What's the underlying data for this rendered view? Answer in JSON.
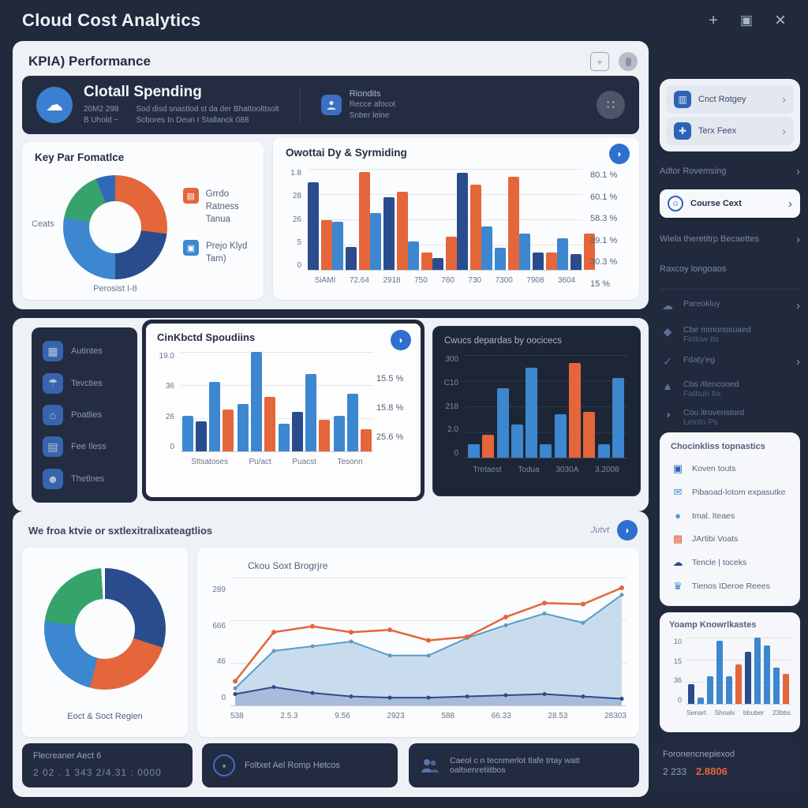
{
  "window": {
    "title": "Cloud Cost Analytics"
  },
  "titlebar": {
    "plus": "+",
    "maximize": "▣",
    "close": "×"
  },
  "icons": {
    "cloud": "☁",
    "dots": "∷",
    "droplet": "◗",
    "chevron": "›",
    "check": "✓",
    "badge_plus": "+",
    "cart": "▦",
    "umbrella": "☂",
    "home": "⌂",
    "case": "▤",
    "users": "☻",
    "shop": "▥",
    "cluster": "✚",
    "gem": "◆",
    "warn": "▲",
    "pie": "◑",
    "grid": "▣",
    "mail": "✉",
    "dot": "●",
    "hatch": "▩",
    "cloud2": "☁",
    "crown": "♛",
    "lock": "▪",
    "wallet": "▬"
  },
  "kpi": {
    "title": "KPIA) Performance"
  },
  "hero": {
    "title": "Clotall Spending",
    "stat1": "20M2 298",
    "stat2": "B Uhold ~",
    "desc1": "Sod disd snastlod st da der Bhattoolttsolt",
    "desc2": "Scbores In Deun I Stallanck 088",
    "col2_title": "Riondits",
    "col2_line1": "Recce afocot",
    "col2_line2": "Snber leine"
  },
  "donut1": {
    "left_label": "Ceats",
    "bottom_label": "Perosist I-8",
    "legend": [
      {
        "line1": "Grrdo Ratness",
        "line2": "Tanua",
        "color": "#e4663a"
      },
      {
        "line1": "Prejo Klyd",
        "line2": "Tam)",
        "color": "#3c87cf"
      }
    ]
  },
  "midlist": {
    "items": [
      "Autintes",
      "Tevcties",
      "Poatlies",
      "Fee Iless",
      "Thetlnes"
    ]
  },
  "section2": {
    "title": "We froa ktvie or sxtlexitralixateagtlios",
    "action": "Jutvt"
  },
  "donut2": {
    "bottom_label": "Eoct & Soct Regien"
  },
  "bottom_cards": [
    {
      "title": "Flecreaner Aect 6",
      "value": "2 02 . 1 343  2/4.31 : 0000"
    },
    {
      "label": "Foltxet Ael Romp Hetcos"
    },
    {
      "label": "Caeol c n tecnmerlot tlafe trtay watt oaltsenretiitbos"
    },
    {
      "title": "Foronencnepiexod",
      "value": "2 233",
      "value2": "2.8806"
    }
  ],
  "sidebar": {
    "buttons": [
      {
        "label": "Cnct Rotgey"
      },
      {
        "label": "Terx Feex"
      }
    ],
    "nav": [
      {
        "label": "Adtor Rovemsing"
      },
      {
        "label": "Course Cext"
      },
      {
        "label": "Wiela theretitrp Becaettes"
      },
      {
        "label": "Raxcoy longoaos"
      }
    ],
    "icon_items": [
      {
        "line1": "Pareokluy",
        "line2": ""
      },
      {
        "line1": "Cbe mmonosuaed",
        "line2": "Firtlow Its"
      },
      {
        "line1": "Fdaty'eg",
        "line2": ""
      },
      {
        "line1": "Cbs /ttencooed",
        "line2": "Fatbuh Ita"
      },
      {
        "line1": "Cou itrovenstord",
        "line2": "Leirito Ps"
      }
    ],
    "checklist": {
      "title": "Chocinkliss topnastics",
      "items": [
        {
          "label": "Koven touts",
          "color": "#2f62b5"
        },
        {
          "label": "Pibaoad-lotom expasutke",
          "color": "#3c87cf"
        },
        {
          "label": "tmal. Iteaes",
          "color": "#4b9be0"
        },
        {
          "label": "JArtibi Voats",
          "color": "#e4663a"
        },
        {
          "label": "Tencle | toceks",
          "color": "#2b4c8c"
        },
        {
          "label": "Tienos IDeroe Reees",
          "color": "#3c87cf"
        }
      ]
    }
  },
  "colors": {
    "blue": "#3c87cf",
    "darkblue": "#2b4c8c",
    "orange": "#e4663a",
    "green": "#36a36d",
    "lightblue": "#5b9cc6",
    "lightblue_fill": "#c9dcee",
    "darkblue_fill": "rgba(43,76,140,0.25)",
    "accent": "#2f6fd0",
    "white": "#ffffff"
  },
  "chart_data": [
    {
      "id": "kpi_donut",
      "type": "pie",
      "title": "Key Par Fomatlce",
      "segments": [
        {
          "label": "orange",
          "value": 27,
          "color": "#e4663a"
        },
        {
          "label": "dark-blue",
          "value": 23,
          "color": "#2b4c8c"
        },
        {
          "label": "blue",
          "value": 28,
          "color": "#3c87cf"
        },
        {
          "label": "green",
          "value": 16,
          "color": "#36a36d"
        },
        {
          "label": "blue-sliver",
          "value": 6,
          "color": "#2f6ab8"
        }
      ]
    },
    {
      "id": "overall",
      "type": "bar",
      "title": "Owottai Dy & Syrmiding",
      "ylabels": [
        "1.8",
        "28",
        "26",
        "5",
        "0"
      ],
      "right_labels": [
        "80.1 %",
        "60.1 %",
        "58.3 %",
        "39.1 %",
        "30.3 %",
        "15 %"
      ],
      "ylim": [
        0,
        2
      ],
      "grid": true,
      "legend_position": "none",
      "groups": [
        {
          "label": "SiAMI",
          "bars": [
            {
              "c": "darkblue",
              "v": 0.87
            },
            {
              "c": "orange",
              "v": 0.49
            }
          ]
        },
        {
          "label": "72.64",
          "bars": [
            {
              "c": "blue",
              "v": 0.48
            },
            {
              "c": "darkblue",
              "v": 0.23
            },
            {
              "c": "orange",
              "v": 0.97
            }
          ]
        },
        {
          "label": "2918",
          "bars": [
            {
              "c": "blue",
              "v": 0.56
            },
            {
              "c": "darkblue",
              "v": 0.72
            },
            {
              "c": "orange",
              "v": 0.77
            }
          ]
        },
        {
          "label": "750",
          "bars": [
            {
              "c": "blue",
              "v": 0.28
            },
            {
              "c": "orange",
              "v": 0.17
            }
          ]
        },
        {
          "label": "760",
          "bars": [
            {
              "c": "darkblue",
              "v": 0.12
            },
            {
              "c": "orange",
              "v": 0.33
            }
          ]
        },
        {
          "label": "730",
          "bars": [
            {
              "c": "darkblue",
              "v": 0.96
            },
            {
              "c": "orange",
              "v": 0.84
            }
          ]
        },
        {
          "label": "7300",
          "bars": [
            {
              "c": "blue",
              "v": 0.43
            },
            {
              "c": "blue",
              "v": 0.22
            },
            {
              "c": "orange",
              "v": 0.92
            }
          ]
        },
        {
          "label": "7908",
          "bars": [
            {
              "c": "blue",
              "v": 0.36
            },
            {
              "c": "darkblue",
              "v": 0.17
            },
            {
              "c": "orange",
              "v": 0.17
            }
          ]
        },
        {
          "label": "3604",
          "bars": [
            {
              "c": "blue",
              "v": 0.31
            },
            {
              "c": "darkblue",
              "v": 0.16
            },
            {
              "c": "orange",
              "v": 0.36
            }
          ]
        }
      ]
    },
    {
      "id": "clicked",
      "type": "bar",
      "title": "CinKbctd Spoudiins",
      "ylabels": [
        "19.0",
        "36",
        "26",
        "0"
      ],
      "right_labels": [
        "15.5 %",
        "15.8 %",
        "25.6 %"
      ],
      "ylim": [
        0,
        19
      ],
      "grid": true,
      "groups": [
        {
          "label": "Sttsatoses",
          "bars": [
            {
              "c": "blue",
              "v": 0.36
            },
            {
              "c": "darkblue",
              "v": 0.3
            },
            {
              "c": "blue",
              "v": 0.7
            },
            {
              "c": "orange",
              "v": 0.42
            }
          ]
        },
        {
          "label": "Pu/act",
          "bars": [
            {
              "c": "blue",
              "v": 0.48
            },
            {
              "c": "blue",
              "v": 1.0
            },
            {
              "c": "orange",
              "v": 0.55
            }
          ]
        },
        {
          "label": "Puacst",
          "bars": [
            {
              "c": "blue",
              "v": 0.28
            },
            {
              "c": "darkblue",
              "v": 0.4
            },
            {
              "c": "blue",
              "v": 0.78
            },
            {
              "c": "orange",
              "v": 0.32
            }
          ]
        },
        {
          "label": "Tesonn",
          "bars": [
            {
              "c": "blue",
              "v": 0.36
            },
            {
              "c": "blue",
              "v": 0.58
            },
            {
              "c": "orange",
              "v": 0.22
            }
          ]
        }
      ]
    },
    {
      "id": "devices",
      "type": "bar",
      "title": "Cwucs depardas by oocicecs",
      "ylabels": [
        "300",
        "C10",
        "218",
        "2.0",
        "0"
      ],
      "xlabels": [
        "Tretaest",
        "Todua",
        "3030A",
        "3.2008"
      ],
      "ylim": [
        0,
        300
      ],
      "grid": true,
      "theme": "dark",
      "bars": [
        {
          "c": "blue",
          "v": 0.13
        },
        {
          "c": "orange",
          "v": 0.22
        },
        {
          "c": "blue",
          "v": 0.68
        },
        {
          "c": "blue",
          "v": 0.32
        },
        {
          "c": "blue",
          "v": 0.88
        },
        {
          "c": "blue",
          "v": 0.13
        },
        {
          "c": "blue",
          "v": 0.42
        },
        {
          "c": "orange",
          "v": 0.92
        },
        {
          "c": "orange",
          "v": 0.45
        },
        {
          "c": "blue",
          "v": 0.13
        },
        {
          "c": "blue",
          "v": 0.78
        }
      ]
    },
    {
      "id": "region_donut",
      "type": "pie",
      "title": "Eoct & Soct Regien",
      "segments": [
        {
          "label": "dark-blue",
          "value": 30,
          "color": "#2b4c8c"
        },
        {
          "label": "orange",
          "value": 24,
          "color": "#e4663a"
        },
        {
          "label": "blue",
          "value": 23,
          "color": "#3c87cf"
        },
        {
          "label": "green",
          "value": 22,
          "color": "#36a36d"
        },
        {
          "label": "gap",
          "value": 1,
          "color": "#ffffff"
        }
      ]
    },
    {
      "id": "cost_line",
      "type": "line",
      "title": "Ckou Soxt Brogrjre",
      "ylabels": [
        "289",
        "666",
        "46",
        "0"
      ],
      "xlabels": [
        "538",
        "2.5.3",
        "9.56",
        "2923",
        "588",
        "66.33",
        "28.53",
        "28303"
      ],
      "grid": true,
      "series": [
        {
          "name": "orange-line",
          "color": "#e4663a",
          "fill": "none",
          "values": [
            0.18,
            0.6,
            0.65,
            0.6,
            0.62,
            0.53,
            0.56,
            0.73,
            0.85,
            0.84,
            0.98
          ]
        },
        {
          "name": "light-blue-area",
          "color": "#5b9cc6",
          "fill": "#c9dcee",
          "values": [
            0.12,
            0.44,
            0.48,
            0.52,
            0.4,
            0.4,
            0.55,
            0.66,
            0.76,
            0.68,
            0.92
          ]
        },
        {
          "name": "dark-blue-area",
          "color": "#2b4c8c",
          "fill": "rgba(43,76,140,0.22)",
          "values": [
            0.07,
            0.13,
            0.08,
            0.05,
            0.04,
            0.04,
            0.05,
            0.06,
            0.07,
            0.05,
            0.03
          ]
        }
      ]
    },
    {
      "id": "mini",
      "type": "bar",
      "title": "Yoamp Knowrlkastes",
      "ylabels": [
        "10",
        "15",
        "36",
        "0"
      ],
      "xlabels": [
        "Senart",
        "Shoalv",
        "bbuber",
        "23bbs"
      ],
      "ylim": [
        0,
        20
      ],
      "grid": true,
      "bars": [
        {
          "c": "darkblue",
          "v": 0.3
        },
        {
          "c": "blue",
          "v": 0.1
        },
        {
          "c": "blue",
          "v": 0.42
        },
        {
          "c": "blue",
          "v": 0.95
        },
        {
          "c": "blue",
          "v": 0.42
        },
        {
          "c": "orange",
          "v": 0.6
        },
        {
          "c": "darkblue",
          "v": 0.78
        },
        {
          "c": "blue",
          "v": 1.0
        },
        {
          "c": "blue",
          "v": 0.88
        },
        {
          "c": "blue",
          "v": 0.55
        },
        {
          "c": "orange",
          "v": 0.45
        }
      ]
    }
  ]
}
